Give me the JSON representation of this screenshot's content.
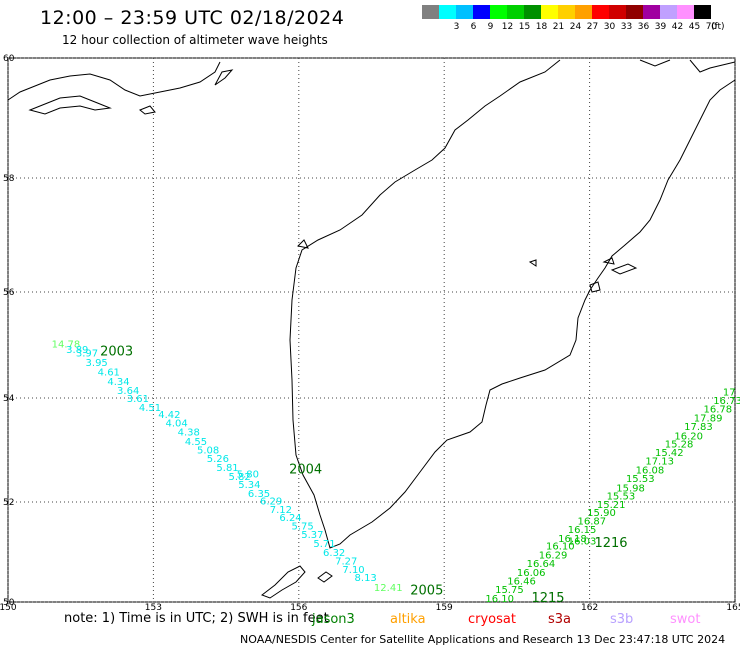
{
  "header": {
    "title": "12:00 – 23:59 UTC 02/18/2024",
    "subtitle": "12 hour collection of altimeter wave heights"
  },
  "scale": {
    "unit": "(ft)",
    "bins": [
      {
        "label": "",
        "color": "#808080"
      },
      {
        "label": "3",
        "color": "#00ffff"
      },
      {
        "label": "6",
        "color": "#00c0ff"
      },
      {
        "label": "9",
        "color": "#0000ff"
      },
      {
        "label": "12",
        "color": "#00ff00"
      },
      {
        "label": "15",
        "color": "#00d000"
      },
      {
        "label": "18",
        "color": "#009000"
      },
      {
        "label": "21",
        "color": "#ffff00"
      },
      {
        "label": "24",
        "color": "#ffd000"
      },
      {
        "label": "27",
        "color": "#ffa000"
      },
      {
        "label": "30",
        "color": "#ff0000"
      },
      {
        "label": "33",
        "color": "#d00000"
      },
      {
        "label": "36",
        "color": "#900000"
      },
      {
        "label": "39",
        "color": "#a000a0"
      },
      {
        "label": "42",
        "color": "#c0a0ff"
      },
      {
        "label": "45",
        "color": "#ff90ff"
      },
      {
        "label": "70",
        "color": "#000000"
      }
    ]
  },
  "axes": {
    "lon_ticks": [
      "150",
      "153",
      "156",
      "159",
      "162",
      "165"
    ],
    "lat_ticks": [
      "60",
      "58",
      "56",
      "54",
      "52",
      "50"
    ]
  },
  "tracks": [
    {
      "name": "track-2003-2004-2005",
      "color": "#00e8e8",
      "time_labels": [
        {
          "text": "2003",
          "lon": 151.9,
          "lat": 54.8
        },
        {
          "text": "2004",
          "lon": 155.8,
          "lat": 52.55
        },
        {
          "text": "2005",
          "lon": 158.3,
          "lat": 50.15
        }
      ],
      "readings": [
        {
          "v": "14.78",
          "lon": 150.9,
          "lat": 54.95,
          "c": "#60ff60"
        },
        {
          "v": "3.89",
          "lon": 151.2,
          "lat": 54.85
        },
        {
          "v": "3.97",
          "lon": 151.4,
          "lat": 54.78
        },
        {
          "v": "3.95",
          "lon": 151.6,
          "lat": 54.6
        },
        {
          "v": "4.61",
          "lon": 151.85,
          "lat": 54.42
        },
        {
          "v": "4.34",
          "lon": 152.05,
          "lat": 54.25
        },
        {
          "v": "3.64",
          "lon": 152.25,
          "lat": 54.08
        },
        {
          "v": "3.61",
          "lon": 152.45,
          "lat": 53.92
        },
        {
          "v": "4.51",
          "lon": 152.7,
          "lat": 53.75
        },
        {
          "v": "4.42",
          "lon": 153.1,
          "lat": 53.62
        },
        {
          "v": "4.04",
          "lon": 153.25,
          "lat": 53.45
        },
        {
          "v": "4.38",
          "lon": 153.5,
          "lat": 53.28
        },
        {
          "v": "4.55",
          "lon": 153.65,
          "lat": 53.1
        },
        {
          "v": "5.08",
          "lon": 153.9,
          "lat": 52.93
        },
        {
          "v": "5.26",
          "lon": 154.1,
          "lat": 52.77
        },
        {
          "v": "5.81",
          "lon": 154.3,
          "lat": 52.6
        },
        {
          "v": "5.82",
          "lon": 154.55,
          "lat": 52.42
        },
        {
          "v": "5.80",
          "lon": 154.72,
          "lat": 52.47
        },
        {
          "v": "5.34",
          "lon": 154.75,
          "lat": 52.27
        },
        {
          "v": "6.35",
          "lon": 154.95,
          "lat": 52.1
        },
        {
          "v": "6.29",
          "lon": 155.2,
          "lat": 51.95
        },
        {
          "v": "7.12",
          "lon": 155.4,
          "lat": 51.78
        },
        {
          "v": "6.24",
          "lon": 155.6,
          "lat": 51.62
        },
        {
          "v": "5.75",
          "lon": 155.85,
          "lat": 51.45
        },
        {
          "v": "5.37",
          "lon": 156.05,
          "lat": 51.28
        },
        {
          "v": "5.71",
          "lon": 156.3,
          "lat": 51.1
        },
        {
          "v": "6.32",
          "lon": 156.5,
          "lat": 50.92
        },
        {
          "v": "7.27",
          "lon": 156.75,
          "lat": 50.75
        },
        {
          "v": "7.10",
          "lon": 156.9,
          "lat": 50.58
        },
        {
          "v": "8.13",
          "lon": 157.15,
          "lat": 50.42
        },
        {
          "v": "12.41",
          "lon": 157.55,
          "lat": 50.22,
          "c": "#60ff60"
        }
      ]
    },
    {
      "name": "track-1215-1216",
      "color": "#00c000",
      "time_labels": [
        {
          "text": "1216",
          "lon": 162.1,
          "lat": 51.1
        },
        {
          "text": "1215",
          "lon": 160.8,
          "lat": 50.0
        }
      ],
      "readings": [
        {
          "v": "16.10",
          "lon": 159.85,
          "lat": 50.0
        },
        {
          "v": "15.75",
          "lon": 160.05,
          "lat": 50.18
        },
        {
          "v": "16.46",
          "lon": 160.3,
          "lat": 50.35
        },
        {
          "v": "16.06",
          "lon": 160.5,
          "lat": 50.52
        },
        {
          "v": "16.64",
          "lon": 160.7,
          "lat": 50.7
        },
        {
          "v": "16.29",
          "lon": 160.95,
          "lat": 50.87
        },
        {
          "v": "16.10",
          "lon": 161.1,
          "lat": 51.05
        },
        {
          "v": "16.18",
          "lon": 161.35,
          "lat": 51.2
        },
        {
          "v": "16.03",
          "lon": 161.55,
          "lat": 51.15
        },
        {
          "v": "16.15",
          "lon": 161.55,
          "lat": 51.38
        },
        {
          "v": "16.87",
          "lon": 161.75,
          "lat": 51.55
        },
        {
          "v": "15.90",
          "lon": 161.95,
          "lat": 51.72
        },
        {
          "v": "15.21",
          "lon": 162.15,
          "lat": 51.88
        },
        {
          "v": "15.53",
          "lon": 162.35,
          "lat": 52.05
        },
        {
          "v": "15.98",
          "lon": 162.55,
          "lat": 52.2
        },
        {
          "v": "15.53",
          "lon": 162.75,
          "lat": 52.38
        },
        {
          "v": "16.08",
          "lon": 162.95,
          "lat": 52.55
        },
        {
          "v": "17.13",
          "lon": 163.15,
          "lat": 52.72
        },
        {
          "v": "15.42",
          "lon": 163.35,
          "lat": 52.88
        },
        {
          "v": "15.28",
          "lon": 163.55,
          "lat": 53.05
        },
        {
          "v": "16.20",
          "lon": 163.75,
          "lat": 53.2
        },
        {
          "v": "17.83",
          "lon": 163.95,
          "lat": 53.38
        },
        {
          "v": "17.89",
          "lon": 164.15,
          "lat": 53.55
        },
        {
          "v": "16.78",
          "lon": 164.35,
          "lat": 53.72
        },
        {
          "v": "16.73",
          "lon": 164.55,
          "lat": 53.88
        },
        {
          "v": "17",
          "lon": 164.75,
          "lat": 54.05
        }
      ]
    }
  ],
  "footer": {
    "note": "note: 1) Time is in UTC; 2) SWH is in feet",
    "satellites": [
      {
        "name": "jason3",
        "color": "#008000"
      },
      {
        "name": "altika",
        "color": "#ffa000"
      },
      {
        "name": "cryosat",
        "color": "#ff0000"
      },
      {
        "name": "s3a",
        "color": "#b00000"
      },
      {
        "name": "s3b",
        "color": "#b8a0ff"
      },
      {
        "name": "swot",
        "color": "#ff90ff"
      }
    ],
    "credit": "NOAA/NESDIS Center for Satellite Applications and Research    13 Dec 23:47:18 UTC 2024"
  }
}
